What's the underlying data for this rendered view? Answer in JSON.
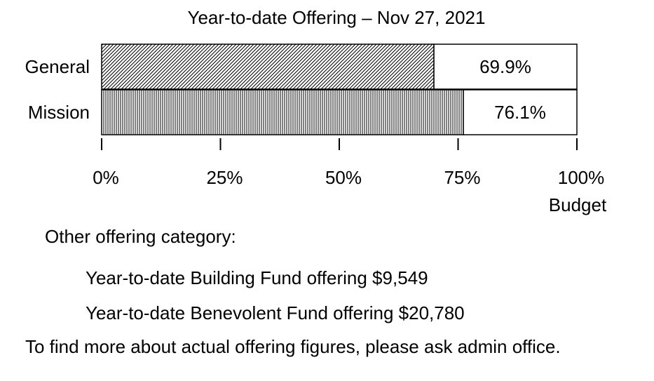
{
  "chart_data": {
    "type": "bar",
    "orientation": "horizontal",
    "stacked": true,
    "title": "Year-to-date Offering – Nov 27, 2021",
    "categories": [
      "General",
      "Mission"
    ],
    "values": [
      69.9,
      76.1
    ],
    "value_labels": [
      "69.9%",
      "76.1%"
    ],
    "total": 100,
    "xlim": [
      0,
      100
    ],
    "xticks": [
      0,
      25,
      50,
      75,
      100
    ],
    "xtick_labels": [
      "0%",
      "25%",
      "50%",
      "75%",
      "100%"
    ],
    "xlabel": "Budget",
    "ylabel": "",
    "grid": false,
    "legend": "none",
    "fill_patterns": [
      "diagonal-hatch",
      "vertical-hatch"
    ],
    "colors": {
      "fill": "#ffffff",
      "stroke": "#000000",
      "text": "#000000"
    }
  },
  "notes": {
    "heading": "Other offering category:",
    "building": "Year-to-date Building Fund offering $9,549",
    "benevolent": "Year-to-date Benevolent Fund offering $20,780",
    "footer": "To find more about actual offering figures, please ask admin office."
  }
}
